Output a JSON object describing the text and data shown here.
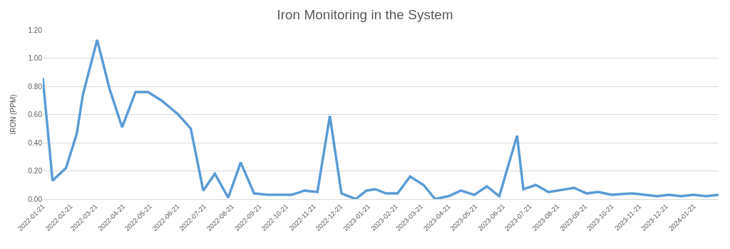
{
  "chart_data": {
    "type": "line",
    "title": "Iron Monitoring in the System",
    "ylabel": "IRON (PPM)",
    "x": [
      "2022-01-21",
      "2022-02-01",
      "2022-02-16",
      "2022-02-28",
      "2022-03-07",
      "2022-03-23",
      "2022-04-06",
      "2022-04-20",
      "2022-05-05",
      "2022-05-19",
      "2022-06-03",
      "2022-06-22",
      "2022-07-06",
      "2022-07-20",
      "2022-08-02",
      "2022-08-17",
      "2022-08-31",
      "2022-09-15",
      "2022-09-30",
      "2022-10-27",
      "2022-11-11",
      "2022-11-25",
      "2022-12-09",
      "2022-12-22",
      "2023-01-07",
      "2023-01-19",
      "2023-01-29",
      "2023-02-10",
      "2023-02-23",
      "2023-03-09",
      "2023-03-24",
      "2023-04-06",
      "2023-04-21",
      "2023-05-05",
      "2023-05-20",
      "2023-06-03",
      "2023-06-17",
      "2023-07-07",
      "2023-07-14",
      "2023-07-28",
      "2023-08-11",
      "2023-09-09",
      "2023-09-23",
      "2023-10-06",
      "2023-10-21",
      "2023-11-13",
      "2023-12-11",
      "2023-12-24",
      "2024-01-07",
      "2024-01-21",
      "2024-02-04",
      "2024-02-18"
    ],
    "series": [
      {
        "color": "#5b9bd5",
        "values": [
          0.86,
          0.13,
          0.22,
          0.46,
          0.74,
          1.13,
          0.78,
          0.51,
          0.76,
          0.76,
          0.7,
          0.6,
          0.5,
          0.06,
          0.18,
          0.01,
          0.26,
          0.04,
          0.03,
          0.03,
          0.06,
          0.05,
          0.59,
          0.04,
          0.0,
          0.06,
          0.07,
          0.04,
          0.04,
          0.16,
          0.1,
          0.0,
          0.02,
          0.06,
          0.03,
          0.09,
          0.02,
          0.45,
          0.07,
          0.1,
          0.05,
          0.08,
          0.04,
          0.05,
          0.03,
          0.04,
          0.02,
          0.03,
          0.02,
          0.03,
          0.02,
          0.03
        ]
      }
    ],
    "xlim": [
      "2022-01-21",
      "2024-02-18"
    ],
    "xticks": [
      {
        "value": "2022-01-21",
        "label": "2022-01-21"
      },
      {
        "value": "2022-02-21",
        "label": "2022-02-21"
      },
      {
        "value": "2022-03-21",
        "label": "2022-03-21"
      },
      {
        "value": "2022-04-21",
        "label": "2022-04-21"
      },
      {
        "value": "2022-05-21",
        "label": "2022-05-21"
      },
      {
        "value": "2022-06-21",
        "label": "2022-06-21"
      },
      {
        "value": "2022-07-21",
        "label": "2022-07-21"
      },
      {
        "value": "2022-08-21",
        "label": "2022-08-21"
      },
      {
        "value": "2022-09-21",
        "label": "2022-09-21"
      },
      {
        "value": "2022-10-21",
        "label": "2022-10-21"
      },
      {
        "value": "2022-11-21",
        "label": "2022-11-21"
      },
      {
        "value": "2022-12-21",
        "label": "2022-12-21"
      },
      {
        "value": "2023-01-21",
        "label": "2023-01-21"
      },
      {
        "value": "2023-02-21",
        "label": "2023-02-21"
      },
      {
        "value": "2023-03-21",
        "label": "2023-03-21"
      },
      {
        "value": "2023-04-21",
        "label": "2023-04-21"
      },
      {
        "value": "2023-05-21",
        "label": "2023-05-21"
      },
      {
        "value": "2023-06-21",
        "label": "2023-06-21"
      },
      {
        "value": "2023-07-21",
        "label": "2023-07-21"
      },
      {
        "value": "2023-08-21",
        "label": "2023-08-21"
      },
      {
        "value": "2023-09-21",
        "label": "2023-09-21"
      },
      {
        "value": "2023-10-21",
        "label": "2023-10-21"
      },
      {
        "value": "2023-11-21",
        "label": "2023-11-21"
      },
      {
        "value": "2023-12-21",
        "label": "2023-12-21"
      },
      {
        "value": "2024-01-21",
        "label": "2024-01-21"
      }
    ],
    "ylim": [
      0,
      1.2
    ],
    "yticks": [
      {
        "value": 0,
        "label": "0.00"
      },
      {
        "value": 0.2,
        "label": "0.20"
      },
      {
        "value": 0.4,
        "label": "0.40"
      },
      {
        "value": 0.6,
        "label": "0.60"
      },
      {
        "value": 0.8,
        "label": "0.80"
      },
      {
        "value": 1.0,
        "label": "1.00"
      },
      {
        "value": 1.2,
        "label": "1.20"
      }
    ],
    "grid": "y",
    "legend": false,
    "marker": "none",
    "line_style": "solid"
  }
}
